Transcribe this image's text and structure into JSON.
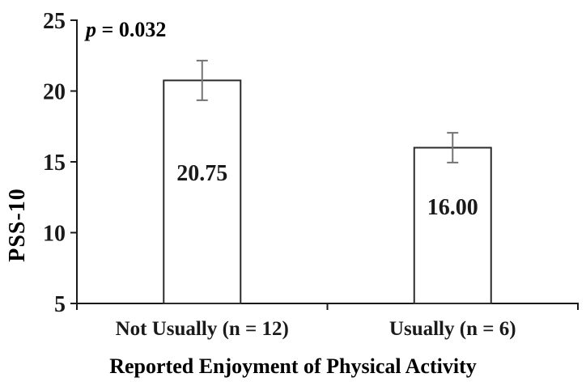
{
  "chart_data": {
    "type": "bar",
    "title": "",
    "xlabel": "Reported Enjoyment of Physical Activity",
    "ylabel": "PSS-10",
    "categories": [
      "Not Usually (n = 12)",
      "Usually (n = 6)"
    ],
    "values": [
      20.75,
      16.0
    ],
    "value_labels": [
      "20.75",
      "16.00"
    ],
    "errors": [
      1.4,
      1.05
    ],
    "ylim": [
      5,
      25
    ],
    "yticks": [
      5,
      10,
      15,
      20,
      25
    ],
    "grid": false,
    "legend": false,
    "annotation": {
      "italic": "p",
      "rest": " = 0.032"
    },
    "colors": {
      "text": "#1a1a1a",
      "axis": "#1a1a1a",
      "bar_fill": "#ffffff",
      "bar_border": "#2b2b2b",
      "error_bar": "#737373"
    }
  }
}
